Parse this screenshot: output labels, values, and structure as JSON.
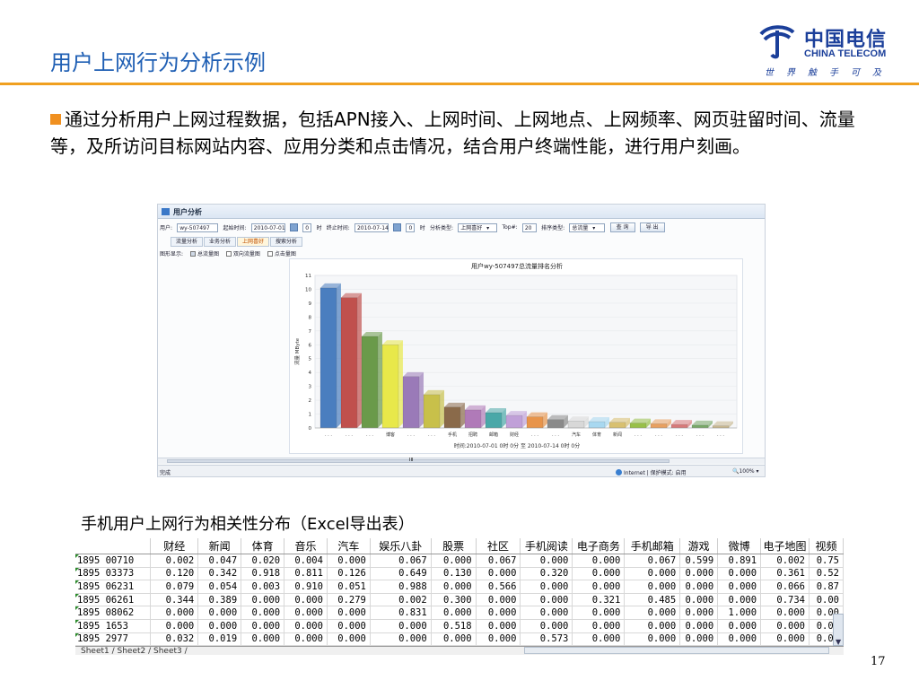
{
  "slide": {
    "title": "用户上网行为分析示例",
    "bullet": "通过分析用户上网过程数据，包括APN接入、上网时间、上网地点、上网频率、网页驻留时间、流量等，及所访问目标网站内容、应用分类和点击情况，结合用户终端性能，进行用户刻画。",
    "caption": "手机用户上网行为相关性分布（Excel导出表）",
    "page_number": "17",
    "accent_color": "#f0a020",
    "title_color": "#1f5fb4"
  },
  "logo": {
    "cn": "中国电信",
    "en": "CHINA TELECOM",
    "slogan": "世界触手可及",
    "icon": "china-telecom-logo-icon"
  },
  "app": {
    "header_title": "用户分析",
    "user_label": "用户:",
    "user_value": "wy-507497",
    "start_label": "起始时间:",
    "start_date": "2010-07-01",
    "start_hour": "0",
    "hour_label_1": "时",
    "end_label": "终止时间:",
    "end_date": "2010-07-14",
    "end_hour": "0",
    "hour_label_2": "时",
    "analysis_type_label": "分析类型:",
    "analysis_type_value": "上网喜好",
    "topn_label": "Top#:",
    "topn_value": "20",
    "sort_type_label": "排序类型:",
    "sort_type_value": "总流量",
    "query_button": "查 询",
    "export_button": "导 出",
    "tabs": [
      "流量分析",
      "业务分析",
      "上网喜好",
      "搜索分析"
    ],
    "active_tab": "上网喜好",
    "chart_display_label": "图形显示:",
    "checkbox_total": "总流量图",
    "checkbox_updown": "双向流量图",
    "checkbox_clicks": "点击量图",
    "status_left": "完成",
    "status_zone": "Internet | 保护模式: 启用",
    "status_zoom": "100%",
    "scroll_marker": "III"
  },
  "chart_data": {
    "type": "bar",
    "title": "用户wy-507497总流量排名分析",
    "ylabel": "流量 MByte",
    "xlabel": "时间:2010-07-01 0时 0分 至 2010-07-14 0时 0分",
    "ylim": [
      0,
      11
    ],
    "yticks": [
      0,
      1,
      2,
      3,
      4,
      5,
      6,
      7,
      8,
      9,
      10,
      11
    ],
    "categories": [
      ". . .",
      ". . .",
      ". . .",
      "博客",
      ". . .",
      ". . .",
      "手机",
      "招聘",
      "邮箱",
      "财经",
      ". . .",
      ". . .",
      "汽车",
      "体育",
      "新闻",
      ". . .",
      ". . .",
      ". . .",
      ". . .",
      ". . ."
    ],
    "values": [
      10.1,
      9.4,
      6.6,
      6.0,
      3.7,
      2.4,
      1.5,
      1.3,
      1.1,
      0.9,
      0.8,
      0.6,
      0.5,
      0.45,
      0.4,
      0.35,
      0.3,
      0.25,
      0.2,
      0.15
    ],
    "colors": [
      "#4a7ebf",
      "#c0504d",
      "#6a9a4a",
      "#e8e84a",
      "#9a7ab8",
      "#c8c04a",
      "#8a6a4a",
      "#b07ab8",
      "#4aa8a8",
      "#c0a0d8",
      "#e8944a",
      "#8a8a8a",
      "#d8d8d8",
      "#a8d8f0",
      "#d8c070",
      "#98c048",
      "#e8a060",
      "#d87a7a",
      "#78a868",
      "#c8b890"
    ],
    "grid": true
  },
  "excel": {
    "columns": [
      "",
      "财经",
      "新闻",
      "体育",
      "音乐",
      "汽车",
      "娱乐八卦",
      "股票",
      "社区",
      "手机阅读",
      "电子商务",
      "手机邮箱",
      "游戏",
      "微博",
      "电子地图",
      "视频"
    ],
    "rows": [
      [
        "1895 00710",
        "0.002",
        "0.047",
        "0.020",
        "0.004",
        "0.000",
        "0.067",
        "0.000",
        "0.067",
        "0.000",
        "0.000",
        "0.067",
        "0.599",
        "0.891",
        "0.002",
        "0.75"
      ],
      [
        "1895 03373",
        "0.120",
        "0.342",
        "0.918",
        "0.811",
        "0.126",
        "0.649",
        "0.130",
        "0.000",
        "0.320",
        "0.000",
        "0.000",
        "0.000",
        "0.000",
        "0.361",
        "0.52"
      ],
      [
        "1895 06231",
        "0.079",
        "0.054",
        "0.003",
        "0.910",
        "0.051",
        "0.988",
        "0.000",
        "0.566",
        "0.000",
        "0.000",
        "0.000",
        "0.000",
        "0.000",
        "0.066",
        "0.87"
      ],
      [
        "1895 06261",
        "0.344",
        "0.389",
        "0.000",
        "0.000",
        "0.279",
        "0.002",
        "0.300",
        "0.000",
        "0.000",
        "0.321",
        "0.485",
        "0.000",
        "0.000",
        "0.734",
        "0.00"
      ],
      [
        "1895 08062",
        "0.000",
        "0.000",
        "0.000",
        "0.000",
        "0.000",
        "0.831",
        "0.000",
        "0.000",
        "0.000",
        "0.000",
        "0.000",
        "0.000",
        "1.000",
        "0.000",
        "0.00"
      ],
      [
        "1895 1653",
        "0.000",
        "0.000",
        "0.000",
        "0.000",
        "0.000",
        "0.000",
        "0.518",
        "0.000",
        "0.000",
        "0.000",
        "0.000",
        "0.000",
        "0.000",
        "0.000",
        "0.00"
      ],
      [
        "1895 2977",
        "0.032",
        "0.019",
        "0.000",
        "0.000",
        "0.000",
        "0.000",
        "0.000",
        "0.000",
        "0.573",
        "0.000",
        "0.000",
        "0.000",
        "0.000",
        "0.000",
        "0.00"
      ]
    ],
    "sheet_tabs": "Sheet1 / Sheet2 / Sheet3 /"
  }
}
